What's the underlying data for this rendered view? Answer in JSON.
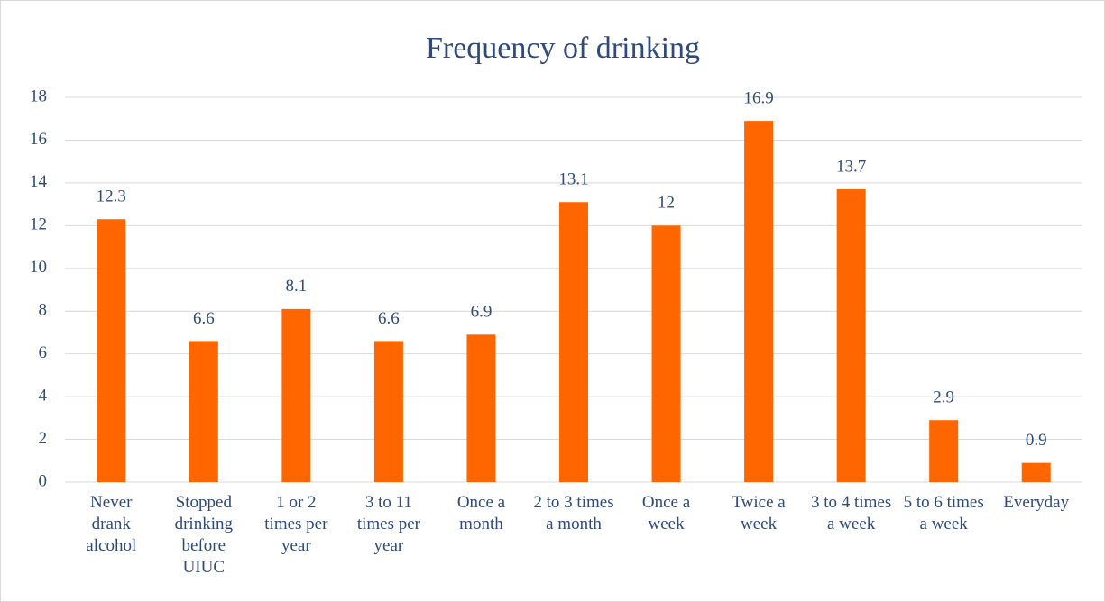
{
  "chart_data": {
    "type": "bar",
    "title": "Frequency of drinking",
    "categories": [
      "Never drank alcohol",
      "Stopped drinking before UIUC",
      "1 or 2 times per year",
      "3 to 11 times per year",
      "Once a month",
      "2 to 3 times a month",
      "Once a week",
      "Twice a week",
      "3 to 4 times a week",
      "5 to 6 times a week",
      "Everyday"
    ],
    "values": [
      12.3,
      6.6,
      8.1,
      6.6,
      6.9,
      13.1,
      12,
      16.9,
      13.7,
      2.9,
      0.9
    ],
    "color": "#ff6600",
    "ylim": [
      0,
      18
    ],
    "yticks": [
      0,
      2,
      4,
      6,
      8,
      10,
      12,
      14,
      16,
      18
    ],
    "grid": true
  }
}
